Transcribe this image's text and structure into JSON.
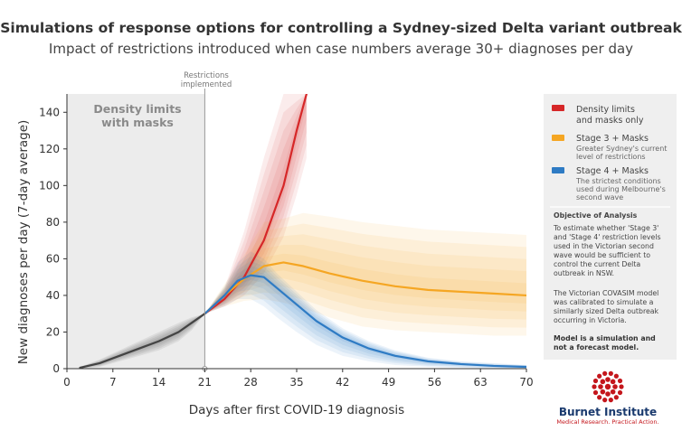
{
  "chart_data": {
    "type": "line",
    "title": "Simulations of response options for controlling a Sydney-sized Delta variant outbreak",
    "subtitle": "Impact of restrictions introduced when case numbers average 30+ diagnoses per day",
    "xlabel": "Days after first COVID-19 diagnosis",
    "ylabel": "New diagnoses per day (7-day average)",
    "xlim": [
      0,
      70
    ],
    "ylim": [
      0,
      150
    ],
    "xticks": [
      "0",
      "7",
      "14",
      "21",
      "28",
      "35",
      "42",
      "49",
      "56",
      "63",
      "70"
    ],
    "yticks": [
      "0",
      "20",
      "40",
      "60",
      "80",
      "100",
      "120",
      "140"
    ],
    "grid": false,
    "legend_position": "right",
    "shaded_region": {
      "x_start": 0,
      "x_end": 21,
      "label_line1": "Density limits",
      "label_line2": "with masks"
    },
    "vline": {
      "x": 21,
      "label_line1": "Restrictions",
      "label_line2": "implemented"
    },
    "series": [
      {
        "name": "Density limits and masks only",
        "color": "#d62728",
        "x": [
          21,
          24,
          27,
          30,
          33,
          35,
          36.5
        ],
        "y": [
          30,
          38,
          50,
          70,
          100,
          130,
          150
        ],
        "band_upper": [
          30,
          44,
          75,
          115,
          150,
          150,
          150
        ],
        "band_lower": [
          30,
          34,
          40,
          52,
          72,
          95,
          115
        ]
      },
      {
        "name": "Stage 3 + Masks",
        "color": "#f5a623",
        "x": [
          21,
          24,
          27,
          30,
          33,
          36,
          40,
          45,
          50,
          55,
          60,
          65,
          70
        ],
        "y": [
          30,
          40,
          49,
          56,
          58,
          56,
          52,
          48,
          45,
          43,
          42,
          41,
          40
        ],
        "band_upper": [
          30,
          46,
          62,
          80,
          82,
          85,
          83,
          80,
          78,
          76,
          75,
          74,
          73
        ],
        "band_lower": [
          30,
          34,
          37,
          38,
          36,
          33,
          28,
          23,
          21,
          20,
          19,
          18,
          18
        ]
      },
      {
        "name": "Stage 4 + Masks",
        "color": "#2e7bc4",
        "x": [
          21,
          24,
          26,
          28,
          30,
          32,
          35,
          38,
          42,
          46,
          50,
          55,
          60,
          65,
          70
        ],
        "y": [
          30,
          40,
          48,
          51,
          50,
          44,
          35,
          26,
          17,
          11,
          7,
          4,
          2.5,
          1.5,
          1
        ],
        "band_upper": [
          30,
          45,
          58,
          64,
          60,
          52,
          42,
          32,
          22,
          15,
          10,
          6,
          4,
          3,
          2
        ],
        "band_lower": [
          30,
          34,
          38,
          38,
          34,
          28,
          20,
          13,
          7,
          4,
          2,
          1,
          0.5,
          0.2,
          0
        ]
      },
      {
        "name": "",
        "color": "#444444",
        "x": [
          2,
          5,
          8,
          11,
          14,
          17,
          19,
          21
        ],
        "y": [
          0.5,
          3,
          7,
          11,
          15,
          20,
          25,
          30
        ],
        "band_upper": [
          1,
          5,
          10,
          15,
          20,
          25,
          28,
          30
        ],
        "band_lower": [
          0,
          1,
          4,
          7,
          10,
          15,
          21,
          30
        ]
      }
    ]
  },
  "legend": {
    "items": [
      {
        "color": "#d62728",
        "title_line1": "Density limits",
        "title_line2": "and masks only",
        "desc1": "",
        "desc2": "",
        "desc3": ""
      },
      {
        "color": "#f5a623",
        "title_line1": "Stage 3 + Masks",
        "title_line2": "",
        "desc1": "Greater Sydney's current",
        "desc2": "level of restrictions",
        "desc3": ""
      },
      {
        "color": "#2e7bc4",
        "title_line1": "Stage 4 + Masks",
        "title_line2": "",
        "desc1": "The strictest conditions",
        "desc2": "used during Melbourne's",
        "desc3": "second wave"
      }
    ]
  },
  "objective": {
    "heading": "Objective of Analysis",
    "lines": [
      "To estimate whether 'Stage 3'",
      "and 'Stage 4' restriction levels",
      "used in the Victorian second",
      "wave would be sufficient to",
      "control the current Delta",
      "outbreak in NSW."
    ],
    "lines2": [
      "The Victorian COVASIM model",
      "was calibrated to simulate a",
      "similarly sized Delta outbreak",
      "occurring in Victoria."
    ],
    "note_line1": "Model is a simulation and",
    "note_line2": "not a forecast model."
  },
  "brand": {
    "name": "Burnet Institute",
    "tagline": "Medical Research. Practical Action.",
    "logo_color": "#c4161c"
  }
}
